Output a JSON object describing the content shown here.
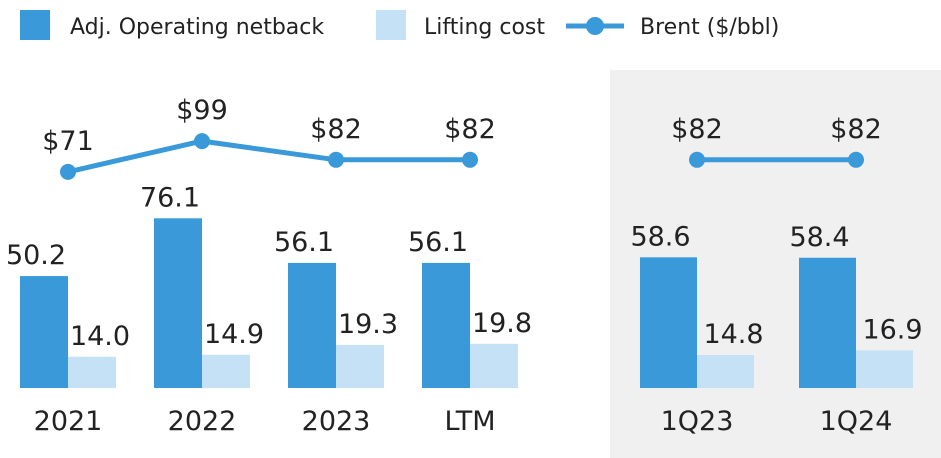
{
  "chart_data": [
    {
      "type": "bar-line",
      "categories": [
        "2021",
        "2022",
        "2023",
        "LTM"
      ],
      "ylim": [
        0,
        100
      ],
      "y2lim": [
        0,
        100
      ],
      "series": [
        {
          "name": "Adj. Operating netback",
          "color": "#3a9ad9",
          "values": [
            50.2,
            76.1,
            56.1,
            56.1
          ]
        },
        {
          "name": "Lifting cost",
          "color": "#c5e1f5",
          "values": [
            14.0,
            14.9,
            19.3,
            19.8
          ],
          "value_labels": [
            "14.0",
            "14.9",
            "19.3",
            "19.8"
          ]
        },
        {
          "name": "Brent ($/bbl)",
          "color": "#3a9ad9",
          "axis": "y2",
          "values": [
            71,
            99,
            82,
            82
          ],
          "value_labels": [
            "$71",
            "$99",
            "$82",
            "$82"
          ]
        }
      ]
    },
    {
      "type": "bar-line",
      "categories": [
        "1Q23",
        "1Q24"
      ],
      "ylim": [
        0,
        100
      ],
      "y2lim": [
        0,
        100
      ],
      "background": "#f0f0f0",
      "series": [
        {
          "color": "#3a9ad9",
          "values": [
            58.6,
            58.4
          ]
        },
        {
          "color": "#c5e1f5",
          "values": [
            14.8,
            16.9
          ]
        },
        {
          "color": "#3a9ad9",
          "axis": "y2",
          "values": [
            82,
            82
          ],
          "value_labels": [
            "$82",
            "$82"
          ]
        }
      ]
    }
  ]
}
